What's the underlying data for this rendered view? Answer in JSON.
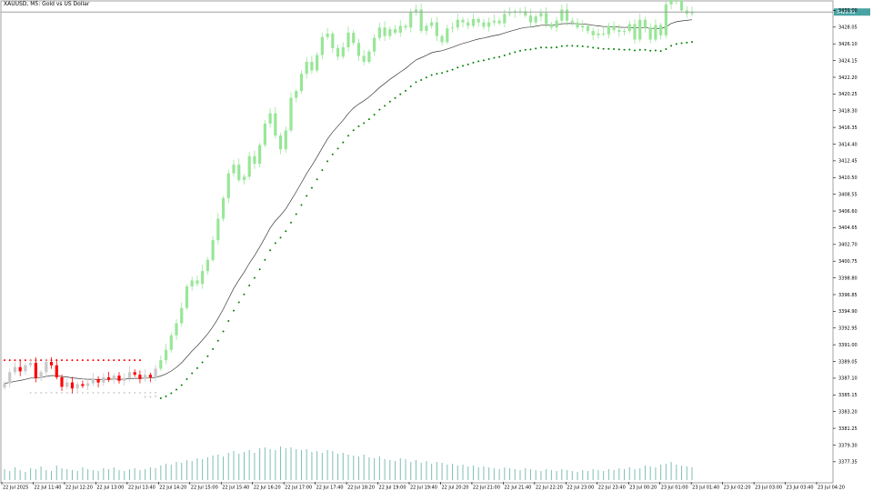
{
  "window": {
    "title": "XAUUSD, M5:  Gold vs US Dollar"
  },
  "colors": {
    "background": "#ffffff",
    "bull_candle": "#98e698",
    "bear_candle": "#ff0000",
    "neutral_candle": "#c8c8c8",
    "moving_average": "#3a3a3a",
    "dots_green": "#008000",
    "dots_red": "#ff0000",
    "dots_gray": "#c8c8c8",
    "volume": "#7fbfb4",
    "current_price_line": "#a0a0a0",
    "current_price_box": "#4aa3a3"
  },
  "chart_data": {
    "type": "candlestick",
    "symbol": "XAUUSD",
    "timeframe": "M5",
    "description": "Gold vs US Dollar",
    "current_price": "3429.81",
    "ylim": [
      3375.0,
      3431.0
    ],
    "y_tick_labels": [
      "3430.00",
      "3428.05",
      "3426.10",
      "3424.15",
      "3422.20",
      "3420.25",
      "3418.30",
      "3416.35",
      "3414.40",
      "3412.45",
      "3410.50",
      "3408.55",
      "3406.60",
      "3404.65",
      "3402.70",
      "3400.75",
      "3398.80",
      "3396.85",
      "3394.90",
      "3392.95",
      "3391.00",
      "3389.05",
      "3387.10",
      "3385.15",
      "3383.20",
      "3381.25",
      "3379.30",
      "3377.35"
    ],
    "x_tick_labels": [
      "22 Jul 2025",
      "22 Jul 11:40",
      "22 Jul 12:20",
      "22 Jul 13:00",
      "22 Jul 13:40",
      "22 Jul 14:20",
      "22 Jul 15:00",
      "22 Jul 15:40",
      "22 Jul 16:20",
      "22 Jul 17:00",
      "22 Jul 17:40",
      "22 Jul 18:20",
      "22 Jul 19:00",
      "22 Jul 19:40",
      "22 Jul 20:20",
      "22 Jul 21:00",
      "22 Jul 21:40",
      "22 Jul 22:20",
      "22 Jul 23:00",
      "22 Jul 23:40",
      "23 Jul 00:20",
      "23 Jul 01:00",
      "23 Jul 01:40",
      "23 Jul 02:20",
      "23 Jul 03:00",
      "23 Jul 03:40",
      "23 Jul 04:20"
    ],
    "close_series": [
      3386.5,
      3387.8,
      3388.4,
      3387.9,
      3388.6,
      3388.9,
      3387.1,
      3387.8,
      3389.0,
      3388.6,
      3387.2,
      3386.1,
      3386.6,
      3385.9,
      3386.4,
      3386.2,
      3386.5,
      3387.0,
      3386.6,
      3387.2,
      3386.9,
      3387.4,
      3386.8,
      3387.1,
      3387.8,
      3387.5,
      3387.0,
      3387.5,
      3387.2,
      3388.2,
      3389.2,
      3390.4,
      3392.1,
      3393.5,
      3395.3,
      3397.8,
      3398.5,
      3398.1,
      3399.6,
      3400.9,
      3403.2,
      3405.7,
      3408.1,
      3411.0,
      3412.0,
      3410.2,
      3410.6,
      3413.0,
      3412.1,
      3414.3,
      3416.8,
      3418.0,
      3415.4,
      3413.8,
      3416.0,
      3419.8,
      3420.6,
      3422.6,
      3424.0,
      3423.0,
      3424.8,
      3426.9,
      3427.3,
      3425.6,
      3424.6,
      3425.7,
      3427.4,
      3426.2,
      3424.7,
      3424.0,
      3425.2,
      3426.8,
      3428.0,
      3427.0,
      3427.8,
      3427.4,
      3428.2,
      3428.0,
      3429.8,
      3430.1,
      3427.6,
      3428.2,
      3428.6,
      3427.0,
      3426.3,
      3427.9,
      3428.0,
      3428.9,
      3428.6,
      3428.2,
      3429.0,
      3428.6,
      3428.1,
      3428.6,
      3428.8,
      3428.5,
      3429.6,
      3429.7,
      3429.9,
      3429.9,
      3429.4,
      3428.6,
      3429.3,
      3429.7,
      3428.4,
      3428.0,
      3428.8,
      3430.1,
      3428.8,
      3428.6,
      3428.0,
      3428.2,
      3427.6,
      3427.1,
      3427.3,
      3427.2,
      3428.2,
      3427.7,
      3427.5,
      3427.6,
      3428.4,
      3426.6,
      3428.9,
      3428.0,
      3426.6,
      3428.3,
      3427.1,
      3430.7,
      3433.2,
      3431.1,
      3430.0,
      3429.6,
      3429.8
    ],
    "volume_series": [
      12,
      10,
      14,
      11,
      9,
      13,
      12,
      15,
      11,
      10,
      16,
      13,
      12,
      11,
      10,
      14,
      12,
      11,
      10,
      13,
      12,
      14,
      11,
      10,
      12,
      13,
      11,
      12,
      14,
      13,
      16,
      18,
      17,
      20,
      19,
      22,
      21,
      24,
      23,
      25,
      27,
      28,
      26,
      30,
      32,
      29,
      31,
      33,
      30,
      35,
      36,
      34,
      33,
      37,
      35,
      36,
      34,
      33,
      34,
      31,
      32,
      30,
      33,
      32,
      29,
      30,
      28,
      27,
      26,
      28,
      25,
      24,
      26,
      23,
      22,
      21,
      24,
      23,
      20,
      22,
      19,
      21,
      18,
      20,
      19,
      17,
      18,
      16,
      17,
      15,
      16,
      14,
      15,
      14,
      13,
      12,
      14,
      13,
      12,
      11,
      13,
      12,
      11,
      10,
      12,
      11,
      10,
      12,
      11,
      10,
      9,
      11,
      10,
      12,
      11,
      10,
      12,
      11,
      13,
      12,
      14,
      12,
      13,
      16,
      15,
      14,
      17,
      18,
      20,
      17,
      16,
      15,
      14
    ],
    "legend": []
  }
}
